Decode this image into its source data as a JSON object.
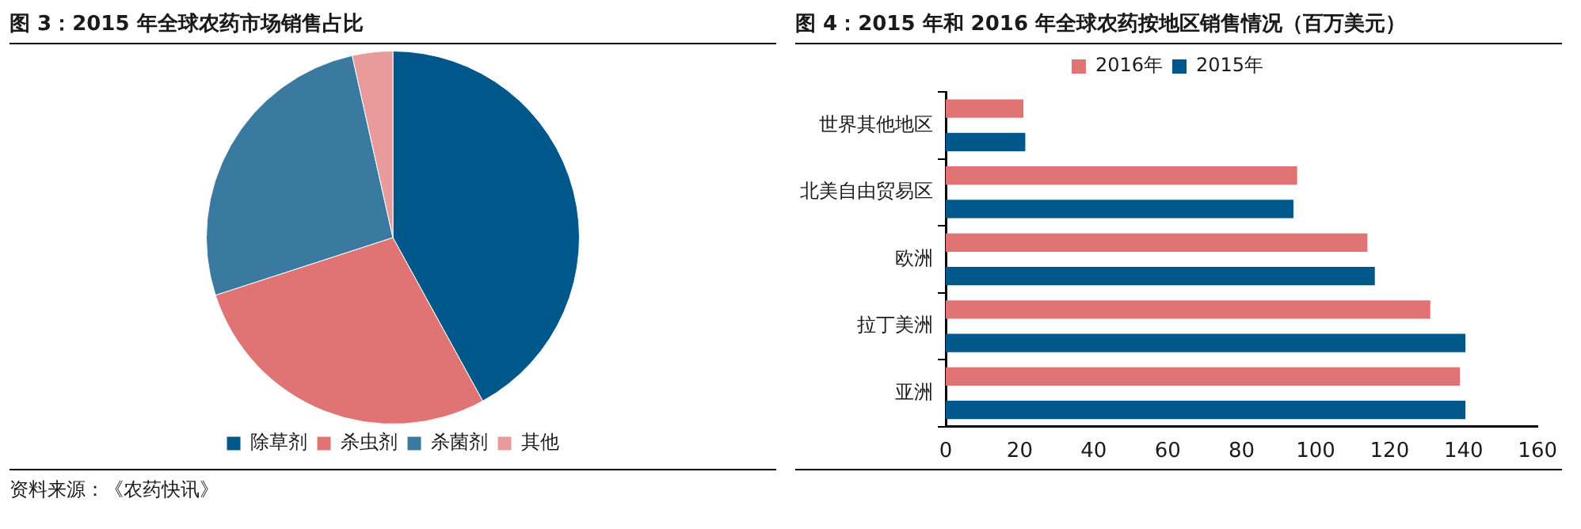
{
  "chart_data": [
    {
      "type": "pie",
      "title": "图 3：2015 年全球农药市场销售占比",
      "categories": [
        "除草剂",
        "杀虫剂",
        "杀菌剂",
        "其他"
      ],
      "values": [
        42,
        28,
        26.5,
        3.5
      ],
      "colors": [
        "#00578a",
        "#e07474",
        "#3a7aa0",
        "#e99a9a"
      ],
      "legend": "bottom",
      "annotations": [
        "资料来源：《农药快讯》"
      ]
    },
    {
      "type": "bar",
      "orientation": "horizontal",
      "title": "图 4：2015 年和 2016 年全球农药按地区销售情况（百万美元）",
      "categories": [
        "世界其他地区",
        "北美自由贸易区",
        "欧洲",
        "拉丁美洲",
        "亚洲"
      ],
      "series": [
        {
          "name": "2016年",
          "color": "#e07474",
          "values": [
            21,
            95,
            114,
            131,
            139
          ]
        },
        {
          "name": "2015年",
          "color": "#00578a",
          "values": [
            21.5,
            94,
            116,
            140.5,
            140.5
          ]
        }
      ],
      "xlim": [
        0,
        160
      ],
      "xticks": [
        0,
        20,
        40,
        60,
        80,
        100,
        120,
        140,
        160
      ],
      "grid": false,
      "legend": "top"
    }
  ]
}
